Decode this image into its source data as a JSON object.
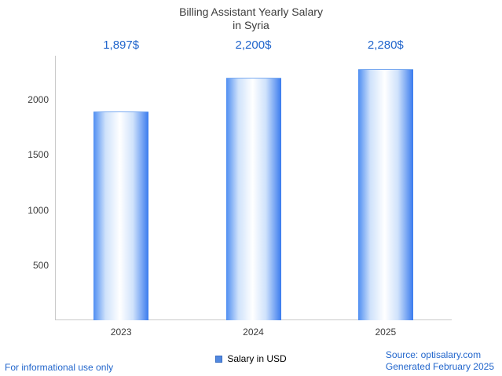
{
  "chart_data": {
    "type": "bar",
    "title": "Billing Assistant Yearly Salary",
    "subtitle": "in Syria",
    "categories": [
      "2023",
      "2024",
      "2025"
    ],
    "values": [
      1897,
      2200,
      2280
    ],
    "value_labels": [
      "1,897$",
      "2,200$",
      "2,280$"
    ],
    "series": [
      {
        "name": "Salary in USD",
        "values": [
          1897,
          2200,
          2280
        ]
      }
    ],
    "legend_label": "Salary in USD",
    "ylim": [
      0,
      2400
    ],
    "yticks": [
      500,
      1000,
      1500,
      2000
    ],
    "xlabel": "",
    "ylabel": "",
    "grid": false,
    "legend_position": "bottom",
    "bar_color": "#4d8ef0"
  },
  "footer": {
    "disclaimer": "For informational use only",
    "source": "Source: optisalary.com",
    "generated": "Generated February 2025"
  },
  "colors": {
    "accent_text": "#2266cc",
    "title_text": "#3c3c3c",
    "axis_line": "#c9c9c9"
  }
}
